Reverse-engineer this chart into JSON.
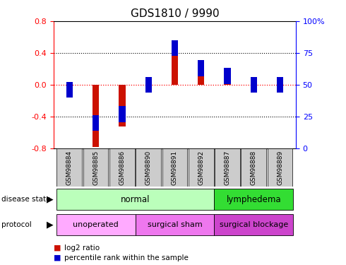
{
  "title": "GDS1810 / 9990",
  "samples": [
    "GSM98884",
    "GSM98885",
    "GSM98886",
    "GSM98890",
    "GSM98891",
    "GSM98892",
    "GSM98887",
    "GSM98888",
    "GSM98889"
  ],
  "log2_ratio": [
    -0.08,
    -0.78,
    -0.52,
    0.0,
    0.52,
    0.22,
    0.1,
    0.0,
    0.0
  ],
  "percentile_rank": [
    46,
    20,
    27,
    50,
    79,
    63,
    57,
    50,
    50
  ],
  "ylim_left": [
    -0.8,
    0.8
  ],
  "ylim_right": [
    0,
    100
  ],
  "yticks_left": [
    -0.8,
    -0.4,
    0.0,
    0.4,
    0.8
  ],
  "yticks_right": [
    0,
    25,
    50,
    75,
    100
  ],
  "disease_state": [
    {
      "label": "normal",
      "start": 0,
      "end": 6,
      "color": "#bbffbb"
    },
    {
      "label": "lymphedema",
      "start": 6,
      "end": 9,
      "color": "#33dd33"
    }
  ],
  "protocol": [
    {
      "label": "unoperated",
      "start": 0,
      "end": 3,
      "color": "#ffaaff"
    },
    {
      "label": "surgical sham",
      "start": 3,
      "end": 6,
      "color": "#ee77ee"
    },
    {
      "label": "surgical blockage",
      "start": 6,
      "end": 9,
      "color": "#cc44cc"
    }
  ],
  "bar_color_red": "#cc1100",
  "bar_color_blue": "#0000cc",
  "red_bar_width": 0.25,
  "blue_bar_size": 0.25,
  "title_fontsize": 11,
  "bg_color": "#ffffff",
  "sample_bg_color": "#cccccc"
}
